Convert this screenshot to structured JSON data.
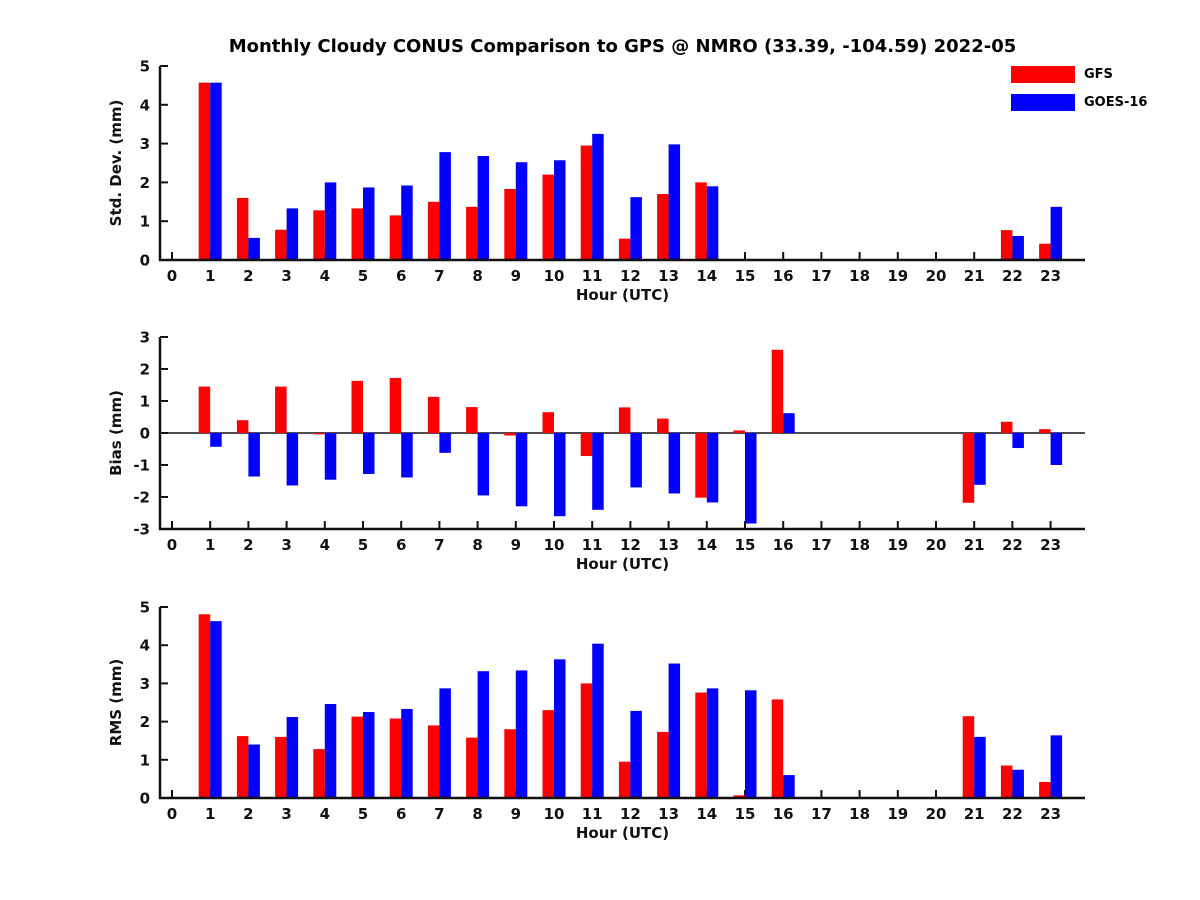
{
  "title": "Monthly Cloudy CONUS Comparison to GPS @ NMRO (33.39, -104.59) 2022-05",
  "legend": {
    "position": "top-right",
    "items": [
      {
        "label": "GFS",
        "color": "#ff0000"
      },
      {
        "label": "GOES-16",
        "color": "#0000ff"
      }
    ]
  },
  "chart_data": [
    {
      "name": "std-dev",
      "type": "bar",
      "title": "",
      "ylabel": "Std. Dev. (mm)",
      "xlabel": "Hour (UTC)",
      "ylim": [
        0,
        5
      ],
      "yticks": [
        0,
        1,
        2,
        3,
        4,
        5
      ],
      "grid": false,
      "categories": [
        0,
        1,
        2,
        3,
        4,
        5,
        6,
        7,
        8,
        9,
        10,
        11,
        12,
        13,
        14,
        15,
        16,
        17,
        18,
        19,
        20,
        21,
        22,
        23
      ],
      "series": [
        {
          "name": "GFS",
          "color": "#ff0000",
          "values": [
            null,
            4.57,
            1.6,
            0.78,
            1.28,
            1.33,
            1.15,
            1.5,
            1.37,
            1.83,
            2.2,
            2.95,
            0.55,
            1.7,
            2.0,
            null,
            null,
            null,
            null,
            null,
            null,
            null,
            0.77,
            0.42
          ]
        },
        {
          "name": "GOES-16",
          "color": "#0000ff",
          "values": [
            null,
            4.57,
            0.57,
            1.33,
            2.0,
            1.87,
            1.92,
            2.78,
            2.68,
            2.52,
            2.57,
            3.25,
            1.62,
            2.98,
            1.9,
            null,
            null,
            null,
            null,
            null,
            null,
            null,
            0.62,
            1.37
          ]
        }
      ]
    },
    {
      "name": "bias",
      "type": "bar",
      "title": "",
      "ylabel": "Bias (mm)",
      "xlabel": "Hour (UTC)",
      "ylim": [
        -3,
        3
      ],
      "yticks": [
        -3,
        -2,
        -1,
        0,
        1,
        2,
        3
      ],
      "grid": false,
      "categories": [
        0,
        1,
        2,
        3,
        4,
        5,
        6,
        7,
        8,
        9,
        10,
        11,
        12,
        13,
        14,
        15,
        16,
        17,
        18,
        19,
        20,
        21,
        22,
        23
      ],
      "series": [
        {
          "name": "GFS",
          "color": "#ff0000",
          "values": [
            null,
            1.45,
            0.4,
            1.45,
            -0.04,
            1.63,
            1.72,
            1.13,
            0.81,
            -0.08,
            0.65,
            -0.72,
            0.8,
            0.45,
            -2.02,
            0.08,
            2.6,
            null,
            null,
            null,
            null,
            -2.18,
            0.35,
            0.12
          ]
        },
        {
          "name": "GOES-16",
          "color": "#0000ff",
          "values": [
            null,
            -0.43,
            -1.36,
            -1.64,
            -1.46,
            -1.28,
            -1.39,
            -0.62,
            -1.95,
            -2.29,
            -2.6,
            -2.4,
            -1.7,
            -1.89,
            -2.17,
            -2.83,
            0.62,
            null,
            null,
            null,
            null,
            -1.62,
            -0.47,
            -1.0
          ]
        }
      ]
    },
    {
      "name": "rms",
      "type": "bar",
      "title": "",
      "ylabel": "RMS (mm)",
      "xlabel": "Hour (UTC)",
      "ylim": [
        0,
        5
      ],
      "yticks": [
        0,
        1,
        2,
        3,
        4,
        5
      ],
      "grid": false,
      "categories": [
        0,
        1,
        2,
        3,
        4,
        5,
        6,
        7,
        8,
        9,
        10,
        11,
        12,
        13,
        14,
        15,
        16,
        17,
        18,
        19,
        20,
        21,
        22,
        23
      ],
      "series": [
        {
          "name": "GFS",
          "color": "#ff0000",
          "values": [
            null,
            4.81,
            1.62,
            1.6,
            1.28,
            2.13,
            2.08,
            1.9,
            1.58,
            1.8,
            2.3,
            3.0,
            0.95,
            1.73,
            2.76,
            0.07,
            2.58,
            null,
            null,
            null,
            null,
            2.14,
            0.85,
            0.42
          ]
        },
        {
          "name": "GOES-16",
          "color": "#0000ff",
          "values": [
            null,
            4.63,
            1.4,
            2.12,
            2.46,
            2.25,
            2.33,
            2.87,
            3.32,
            3.34,
            3.63,
            4.04,
            2.28,
            3.52,
            2.87,
            2.82,
            0.6,
            null,
            null,
            null,
            null,
            1.6,
            0.74,
            1.64
          ]
        }
      ]
    }
  ]
}
